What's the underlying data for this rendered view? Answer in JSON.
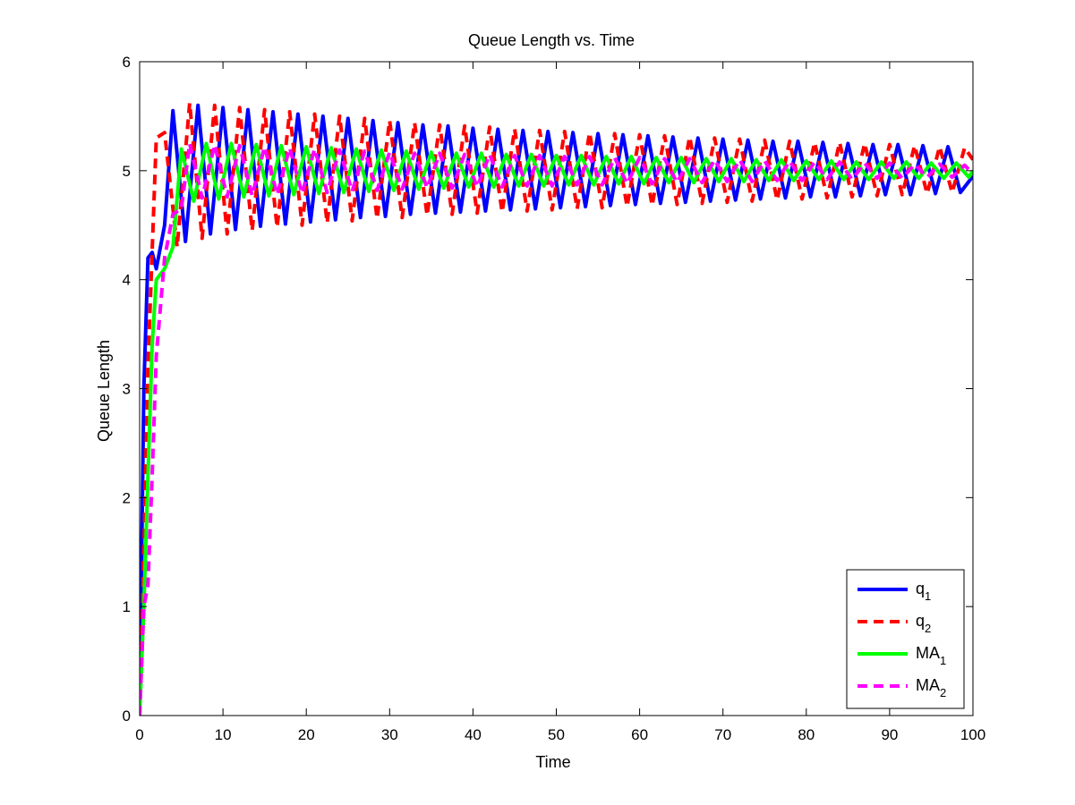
{
  "chart_data": {
    "type": "line",
    "title": "Queue Length vs. Time",
    "xlabel": "Time",
    "ylabel": "Queue Length",
    "xlim": [
      0,
      100
    ],
    "ylim": [
      0,
      6
    ],
    "xticks": [
      0,
      10,
      20,
      30,
      40,
      50,
      60,
      70,
      80,
      90,
      100
    ],
    "yticks": [
      0,
      1,
      2,
      3,
      4,
      5,
      6
    ],
    "grid": false,
    "legend_position": "bottom-right",
    "series": [
      {
        "name": "q",
        "subscript": "1",
        "color": "#0000ff",
        "dash": "solid",
        "x": [
          0,
          0.5,
          1,
          1.5,
          2,
          3,
          4,
          5.5,
          7,
          8.5,
          10,
          11.5,
          13,
          14.5,
          16,
          17.5,
          19,
          20.5,
          22,
          23.5,
          25,
          26.5,
          28,
          29.5,
          31,
          32.5,
          34,
          35.5,
          37,
          38.5,
          40,
          41.5,
          43,
          44.5,
          46,
          47.5,
          49,
          50.5,
          52,
          53.5,
          55,
          56.5,
          58,
          59.5,
          61,
          62.5,
          64,
          65.5,
          67,
          68.5,
          70,
          71.5,
          73,
          74.5,
          76,
          77.5,
          79,
          80.5,
          82,
          83.5,
          85,
          86.5,
          88,
          89.5,
          91,
          92.5,
          94,
          95.5,
          97,
          98.5,
          100
        ],
        "values": [
          0,
          3.0,
          4.2,
          4.25,
          4.1,
          4.5,
          5.55,
          4.35,
          5.6,
          4.42,
          5.58,
          4.46,
          5.56,
          4.49,
          5.54,
          4.51,
          5.52,
          4.53,
          5.5,
          4.55,
          5.48,
          4.57,
          5.46,
          4.58,
          5.44,
          4.6,
          5.42,
          4.61,
          5.41,
          4.62,
          5.39,
          4.63,
          5.38,
          4.64,
          5.37,
          4.65,
          5.36,
          4.66,
          5.35,
          4.67,
          5.34,
          4.68,
          5.33,
          4.69,
          5.32,
          4.7,
          5.31,
          4.71,
          5.3,
          4.72,
          5.29,
          4.73,
          5.28,
          4.74,
          5.27,
          4.75,
          5.27,
          4.76,
          5.26,
          4.76,
          5.25,
          4.77,
          5.24,
          4.78,
          5.24,
          4.78,
          5.23,
          4.79,
          5.22,
          4.8,
          4.95
        ]
      },
      {
        "name": "q",
        "subscript": "2",
        "color": "#ff0000",
        "dash": "dashed",
        "x": [
          0,
          0.5,
          1,
          2,
          3,
          4.5,
          6,
          7.5,
          9,
          10.5,
          12,
          13.5,
          15,
          16.5,
          18,
          19.5,
          21,
          22.5,
          24,
          25.5,
          27,
          28.5,
          30,
          31.5,
          33,
          34.5,
          36,
          37.5,
          39,
          40.5,
          42,
          43.5,
          45,
          46.5,
          48,
          49.5,
          51,
          52.5,
          54,
          55.5,
          57,
          58.5,
          60,
          61.5,
          63,
          64.5,
          66,
          67.5,
          69,
          70.5,
          72,
          73.5,
          75,
          76.5,
          78,
          79.5,
          81,
          82.5,
          84,
          85.5,
          87,
          88.5,
          90,
          91.5,
          93,
          94.5,
          96,
          97.5,
          99,
          100
        ],
        "values": [
          0,
          1.5,
          3.2,
          5.3,
          5.35,
          4.3,
          5.62,
          4.38,
          5.6,
          4.42,
          5.58,
          4.45,
          5.56,
          4.48,
          5.54,
          4.5,
          5.52,
          4.52,
          5.5,
          4.54,
          5.48,
          4.56,
          5.46,
          4.57,
          5.44,
          4.59,
          5.42,
          4.6,
          5.41,
          4.61,
          5.4,
          4.62,
          5.38,
          4.63,
          5.37,
          4.64,
          5.36,
          4.65,
          5.35,
          4.66,
          5.34,
          4.67,
          5.33,
          4.68,
          5.32,
          4.69,
          5.31,
          4.7,
          5.3,
          4.71,
          5.29,
          4.72,
          5.28,
          4.73,
          5.27,
          4.74,
          5.26,
          4.75,
          5.26,
          4.76,
          5.25,
          4.77,
          5.24,
          4.78,
          5.23,
          4.79,
          5.22,
          4.8,
          5.21,
          5.1
        ]
      },
      {
        "name": "MA",
        "subscript": "1",
        "color": "#00ff00",
        "dash": "solid",
        "x": [
          0,
          0.5,
          1,
          1.5,
          2,
          3,
          4,
          5,
          6.5,
          8,
          9.5,
          11,
          12.5,
          14,
          15.5,
          17,
          18.5,
          20,
          21.5,
          23,
          24.5,
          26,
          27.5,
          29,
          30.5,
          32,
          33.5,
          35,
          36.5,
          38,
          39.5,
          41,
          42.5,
          44,
          45.5,
          47,
          48.5,
          50,
          51.5,
          53,
          54.5,
          56,
          57.5,
          59,
          60.5,
          62,
          63.5,
          65,
          66.5,
          68,
          69.5,
          71,
          72.5,
          74,
          75.5,
          77,
          78.5,
          80,
          81.5,
          83,
          84.5,
          86,
          87.5,
          89,
          90.5,
          92,
          93.5,
          95,
          96.5,
          98,
          99.5,
          100
        ],
        "values": [
          0,
          1.0,
          2.2,
          3.4,
          4.0,
          4.1,
          4.3,
          5.2,
          4.72,
          5.25,
          4.74,
          5.25,
          4.76,
          5.24,
          4.77,
          5.23,
          4.78,
          5.22,
          4.79,
          5.21,
          4.8,
          5.2,
          4.81,
          5.19,
          4.82,
          5.18,
          4.83,
          5.17,
          4.84,
          5.16,
          4.85,
          5.16,
          4.85,
          5.15,
          4.86,
          5.15,
          4.86,
          5.14,
          4.87,
          5.14,
          4.87,
          5.13,
          4.88,
          5.13,
          4.88,
          5.12,
          4.89,
          5.12,
          4.89,
          5.11,
          4.9,
          5.11,
          4.9,
          5.1,
          4.91,
          5.1,
          4.91,
          5.09,
          4.92,
          5.09,
          4.92,
          5.08,
          4.92,
          5.08,
          4.93,
          5.08,
          4.93,
          5.07,
          4.93,
          5.07,
          4.94,
          5.0
        ]
      },
      {
        "name": "MA",
        "subscript": "2",
        "color": "#ff00ff",
        "dash": "dashed",
        "x": [
          0,
          0.5,
          1,
          1.5,
          2,
          3,
          4,
          5,
          6,
          7.5,
          9,
          10.5,
          12,
          13.5,
          15,
          16.5,
          18,
          19.5,
          21,
          22.5,
          24,
          25.5,
          27,
          28.5,
          30,
          31.5,
          33,
          34.5,
          36,
          37.5,
          39,
          40.5,
          42,
          43.5,
          45,
          46.5,
          48,
          49.5,
          51,
          52.5,
          54,
          55.5,
          57,
          58.5,
          60,
          61.5,
          63,
          64.5,
          66,
          67.5,
          69,
          70.5,
          72,
          73.5,
          75,
          76.5,
          78,
          79.5,
          81,
          82.5,
          84,
          85.5,
          87,
          88.5,
          90,
          91.5,
          93,
          94.5,
          96,
          97.5,
          99,
          100
        ],
        "values": [
          0,
          1.0,
          1.2,
          2.2,
          3.3,
          4.2,
          4.6,
          4.65,
          5.25,
          4.75,
          5.24,
          4.76,
          5.23,
          4.77,
          5.22,
          4.78,
          5.21,
          4.79,
          5.2,
          4.8,
          5.19,
          4.81,
          5.18,
          4.82,
          5.17,
          4.83,
          5.16,
          4.84,
          5.16,
          4.84,
          5.15,
          4.85,
          5.15,
          4.85,
          5.14,
          4.86,
          5.14,
          4.86,
          5.13,
          4.87,
          5.13,
          4.87,
          5.12,
          4.88,
          5.12,
          4.88,
          5.11,
          4.89,
          5.11,
          4.89,
          5.1,
          4.9,
          5.1,
          4.9,
          5.09,
          4.91,
          5.09,
          4.91,
          5.08,
          4.92,
          5.08,
          4.92,
          5.07,
          4.93,
          5.07,
          4.93,
          5.06,
          4.94,
          5.06,
          4.94,
          5.05,
          4.97
        ]
      }
    ]
  }
}
